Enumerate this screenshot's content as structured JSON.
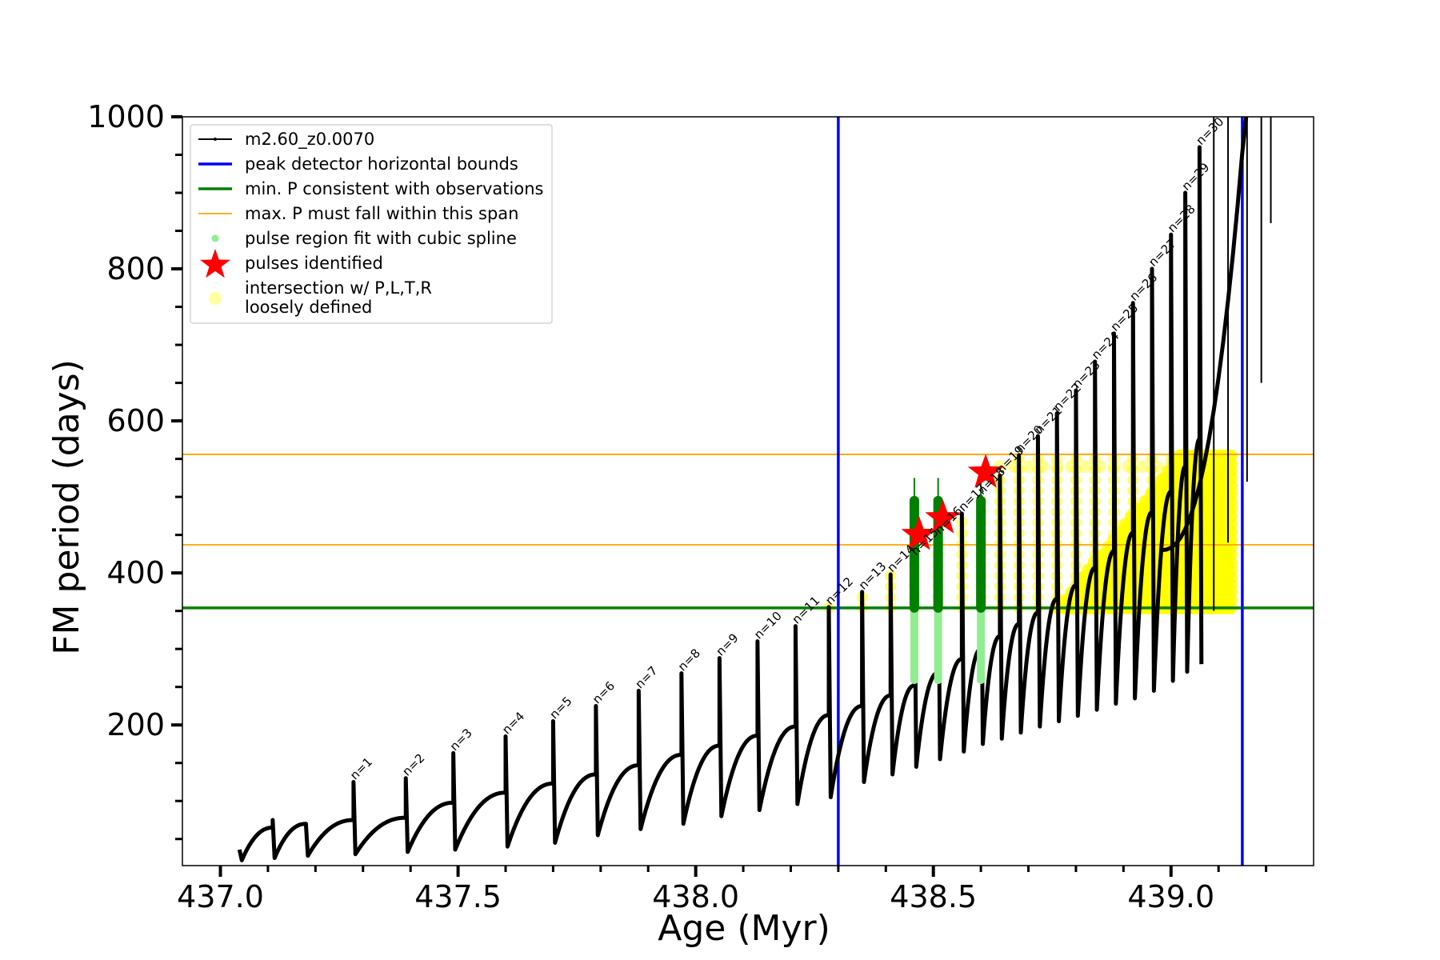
{
  "chart_data": {
    "type": "scatter",
    "xlabel": "Age (Myr)",
    "ylabel": "FM period (days)",
    "xlim": [
      436.92,
      439.3
    ],
    "ylim": [
      15,
      1000
    ],
    "xticks": [
      437.0,
      437.5,
      438.0,
      438.5,
      439.0
    ],
    "xtick_labels": [
      "437.0",
      "437.5",
      "438.0",
      "438.5",
      "439.0"
    ],
    "yticks": [
      200,
      400,
      600,
      800,
      1000
    ],
    "ytick_labels": [
      "200",
      "400",
      "600",
      "800",
      "1000"
    ],
    "grid": false,
    "legend_position": "top-left",
    "legend": [
      {
        "label": "m2.60_z0.0070",
        "kind": "line-marker",
        "color": "#000000"
      },
      {
        "label": "peak detector horizontal bounds",
        "kind": "line",
        "color": "#0000ff"
      },
      {
        "label": "min. P consistent with observations",
        "kind": "line",
        "color": "#008000"
      },
      {
        "label": "max. P must fall within this span",
        "kind": "thinline",
        "color": "#ffa500"
      },
      {
        "label": "pulse region fit with cubic spline",
        "kind": "dot",
        "color": "#90ee90"
      },
      {
        "label": "pulses identified",
        "kind": "star",
        "color": "#ff0000"
      },
      {
        "label": "intersection w/ P,L,T,R",
        "label2": "loosely defined",
        "kind": "bigdot",
        "color": "#ffffa0"
      }
    ],
    "colors": {
      "track": "#000000",
      "bounds": "#0000ff",
      "min_period": "#008000",
      "max_span": "#ffa500",
      "spline": "#90ee90",
      "pulse_region": "#008000",
      "stars": "#ff0000",
      "intersection": "#ffff00"
    },
    "vertical_bounds_x": [
      438.3,
      439.15
    ],
    "min_period_y": 354,
    "max_period_span_y": [
      437,
      556
    ],
    "pulses": [
      {
        "n": 1,
        "x": 437.28,
        "min": 30,
        "max": 125
      },
      {
        "n": 2,
        "x": 437.39,
        "min": 33,
        "max": 130
      },
      {
        "n": 3,
        "x": 437.49,
        "min": 36,
        "max": 163
      },
      {
        "n": 4,
        "x": 437.6,
        "min": 40,
        "max": 185
      },
      {
        "n": 5,
        "x": 437.7,
        "min": 45,
        "max": 205
      },
      {
        "n": 6,
        "x": 437.79,
        "min": 55,
        "max": 225
      },
      {
        "n": 7,
        "x": 437.88,
        "min": 63,
        "max": 245
      },
      {
        "n": 8,
        "x": 437.97,
        "min": 70,
        "max": 268
      },
      {
        "n": 9,
        "x": 438.05,
        "min": 80,
        "max": 288
      },
      {
        "n": 10,
        "x": 438.13,
        "min": 88,
        "max": 310
      },
      {
        "n": 11,
        "x": 438.21,
        "min": 96,
        "max": 330
      },
      {
        "n": 12,
        "x": 438.28,
        "min": 105,
        "max": 355
      },
      {
        "n": 13,
        "x": 438.35,
        "min": 125,
        "max": 375
      },
      {
        "n": 14,
        "x": 438.41,
        "min": 135,
        "max": 398
      },
      {
        "n": 15,
        "x": 438.46,
        "min": 145,
        "max": 420
      },
      {
        "n": 16,
        "x": 438.51,
        "min": 155,
        "max": 448
      },
      {
        "n": 17,
        "x": 438.56,
        "min": 165,
        "max": 478
      },
      {
        "n": 18,
        "x": 438.6,
        "min": 175,
        "max": 500
      },
      {
        "n": 19,
        "x": 438.64,
        "min": 182,
        "max": 528
      },
      {
        "n": 20,
        "x": 438.68,
        "min": 190,
        "max": 555
      },
      {
        "n": 21,
        "x": 438.72,
        "min": 198,
        "max": 580
      },
      {
        "n": 22,
        "x": 438.76,
        "min": 205,
        "max": 610
      },
      {
        "n": 23,
        "x": 438.8,
        "min": 212,
        "max": 640
      },
      {
        "n": 24,
        "x": 438.84,
        "min": 220,
        "max": 678
      },
      {
        "n": 25,
        "x": 438.88,
        "min": 228,
        "max": 715
      },
      {
        "n": 26,
        "x": 438.92,
        "min": 235,
        "max": 755
      },
      {
        "n": 27,
        "x": 438.96,
        "min": 245,
        "max": 800
      },
      {
        "n": 28,
        "x": 439.0,
        "min": 258,
        "max": 845
      },
      {
        "n": 29,
        "x": 439.03,
        "min": 270,
        "max": 900
      },
      {
        "n": 30,
        "x": 439.06,
        "min": 280,
        "max": 960
      }
    ],
    "stars": [
      {
        "x": 438.47,
        "y": 450
      },
      {
        "x": 438.52,
        "y": 472
      },
      {
        "x": 438.61,
        "y": 532
      }
    ]
  }
}
